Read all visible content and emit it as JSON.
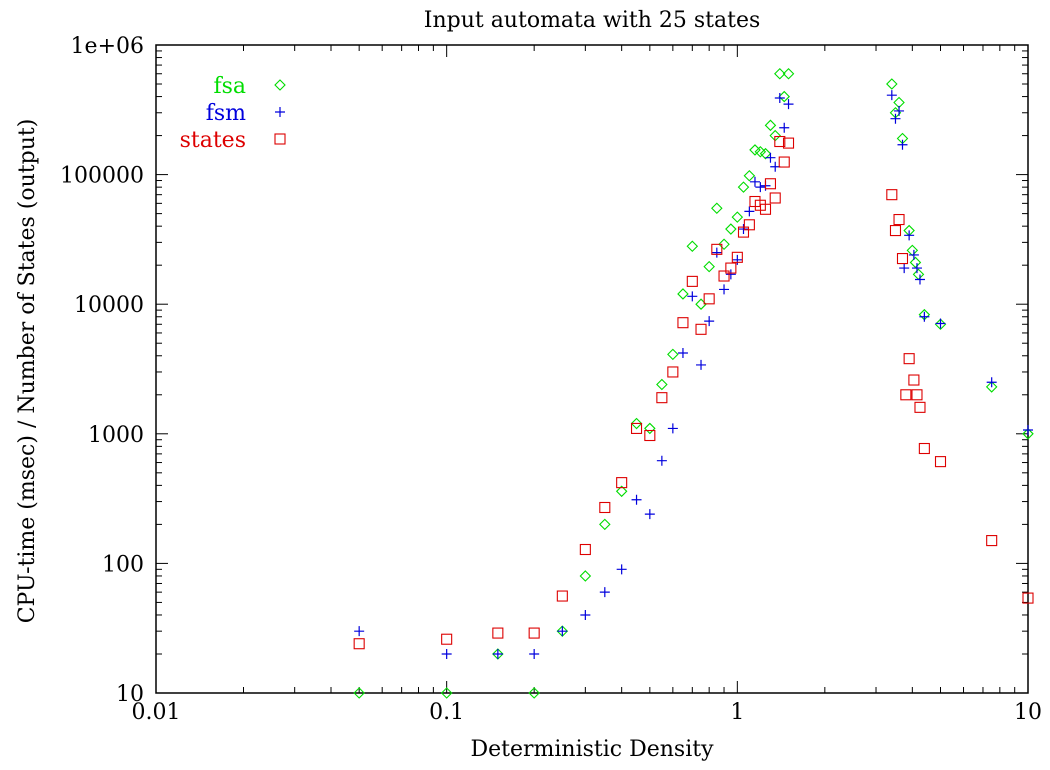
{
  "chart_data": {
    "type": "scatter",
    "title": "Input automata with 25 states",
    "xlabel": "Deterministic Density",
    "ylabel": "CPU-time (msec) / Number of States (output)",
    "xscale": "log",
    "yscale": "log",
    "xlim": [
      0.01,
      10
    ],
    "ylim": [
      10,
      1000000
    ],
    "xticks": [
      {
        "value": 0.01,
        "label": "0.01"
      },
      {
        "value": 0.1,
        "label": "0.1"
      },
      {
        "value": 1,
        "label": "1"
      },
      {
        "value": 10,
        "label": "10"
      }
    ],
    "yticks": [
      {
        "value": 10,
        "label": "10"
      },
      {
        "value": 100,
        "label": "100"
      },
      {
        "value": 1000,
        "label": "1000"
      },
      {
        "value": 10000,
        "label": "10000"
      },
      {
        "value": 100000,
        "label": "100000"
      },
      {
        "value": 1000000,
        "label": "1e+06"
      }
    ],
    "legend_position": "top-left",
    "series": [
      {
        "name": "fsa",
        "color": "#00dd00",
        "marker": "diamond",
        "points": [
          [
            0.05,
            10
          ],
          [
            0.1,
            10
          ],
          [
            0.15,
            20
          ],
          [
            0.2,
            10
          ],
          [
            0.25,
            30
          ],
          [
            0.3,
            80
          ],
          [
            0.35,
            200
          ],
          [
            0.4,
            360
          ],
          [
            0.45,
            1200
          ],
          [
            0.5,
            1100
          ],
          [
            0.55,
            2400
          ],
          [
            0.6,
            4100
          ],
          [
            0.65,
            12000
          ],
          [
            0.7,
            28000
          ],
          [
            0.75,
            10000
          ],
          [
            0.8,
            19500
          ],
          [
            0.85,
            55000
          ],
          [
            0.9,
            29000
          ],
          [
            0.95,
            38000
          ],
          [
            1.0,
            47000
          ],
          [
            1.05,
            80000
          ],
          [
            1.1,
            98000
          ],
          [
            1.15,
            155000
          ],
          [
            1.2,
            150000
          ],
          [
            1.25,
            145000
          ],
          [
            1.3,
            240000
          ],
          [
            1.35,
            200000
          ],
          [
            1.4,
            600000
          ],
          [
            1.45,
            400000
          ],
          [
            1.5,
            600000
          ],
          [
            3.4,
            500000
          ],
          [
            3.5,
            300000
          ],
          [
            3.6,
            360000
          ],
          [
            3.7,
            190000
          ],
          [
            3.9,
            37000
          ],
          [
            4.0,
            26000
          ],
          [
            4.1,
            21000
          ],
          [
            4.2,
            17000
          ],
          [
            4.4,
            8300
          ],
          [
            5.0,
            7000
          ],
          [
            7.5,
            2300
          ],
          [
            10.0,
            1000
          ]
        ]
      },
      {
        "name": "fsm",
        "color": "#0000dd",
        "marker": "plus",
        "points": [
          [
            0.05,
            30
          ],
          [
            0.1,
            20
          ],
          [
            0.15,
            20
          ],
          [
            0.2,
            20
          ],
          [
            0.25,
            30
          ],
          [
            0.3,
            40
          ],
          [
            0.35,
            60
          ],
          [
            0.4,
            90
          ],
          [
            0.45,
            310
          ],
          [
            0.5,
            240
          ],
          [
            0.55,
            620
          ],
          [
            0.6,
            1100
          ],
          [
            0.65,
            4200
          ],
          [
            0.7,
            11500
          ],
          [
            0.75,
            3400
          ],
          [
            0.8,
            7400
          ],
          [
            0.85,
            25000
          ],
          [
            0.9,
            13000
          ],
          [
            0.95,
            17000
          ],
          [
            1.0,
            22000
          ],
          [
            1.05,
            38000
          ],
          [
            1.1,
            52000
          ],
          [
            1.15,
            88000
          ],
          [
            1.2,
            80000
          ],
          [
            1.25,
            82000
          ],
          [
            1.3,
            135000
          ],
          [
            1.35,
            115000
          ],
          [
            1.4,
            390000
          ],
          [
            1.45,
            230000
          ],
          [
            1.5,
            350000
          ],
          [
            3.4,
            410000
          ],
          [
            3.5,
            270000
          ],
          [
            3.6,
            310000
          ],
          [
            3.7,
            170000
          ],
          [
            3.75,
            19000
          ],
          [
            3.9,
            34000
          ],
          [
            4.05,
            24000
          ],
          [
            4.15,
            19000
          ],
          [
            4.25,
            15500
          ],
          [
            4.4,
            8000
          ],
          [
            5.0,
            7100
          ],
          [
            7.5,
            2500
          ],
          [
            10.0,
            1070
          ]
        ]
      },
      {
        "name": "states",
        "color": "#dd0000",
        "marker": "square",
        "points": [
          [
            0.05,
            24
          ],
          [
            0.1,
            26
          ],
          [
            0.15,
            29
          ],
          [
            0.2,
            29
          ],
          [
            0.25,
            56
          ],
          [
            0.3,
            128
          ],
          [
            0.35,
            270
          ],
          [
            0.4,
            420
          ],
          [
            0.45,
            1100
          ],
          [
            0.5,
            970
          ],
          [
            0.55,
            1900
          ],
          [
            0.6,
            3000
          ],
          [
            0.65,
            7200
          ],
          [
            0.7,
            15000
          ],
          [
            0.75,
            6400
          ],
          [
            0.8,
            11000
          ],
          [
            0.85,
            26500
          ],
          [
            0.9,
            16500
          ],
          [
            0.95,
            19000
          ],
          [
            1.0,
            23000
          ],
          [
            1.05,
            36000
          ],
          [
            1.1,
            41000
          ],
          [
            1.15,
            62000
          ],
          [
            1.2,
            58000
          ],
          [
            1.25,
            54000
          ],
          [
            1.3,
            85000
          ],
          [
            1.35,
            66000
          ],
          [
            1.4,
            180000
          ],
          [
            1.45,
            125000
          ],
          [
            1.5,
            175000
          ],
          [
            3.4,
            70000
          ],
          [
            3.5,
            37000
          ],
          [
            3.6,
            45000
          ],
          [
            3.7,
            22500
          ],
          [
            3.8,
            2000
          ],
          [
            3.9,
            3800
          ],
          [
            4.05,
            2600
          ],
          [
            4.15,
            2000
          ],
          [
            4.25,
            1600
          ],
          [
            4.4,
            770
          ],
          [
            5.0,
            610
          ],
          [
            7.5,
            150
          ],
          [
            10.0,
            54
          ]
        ]
      }
    ]
  }
}
